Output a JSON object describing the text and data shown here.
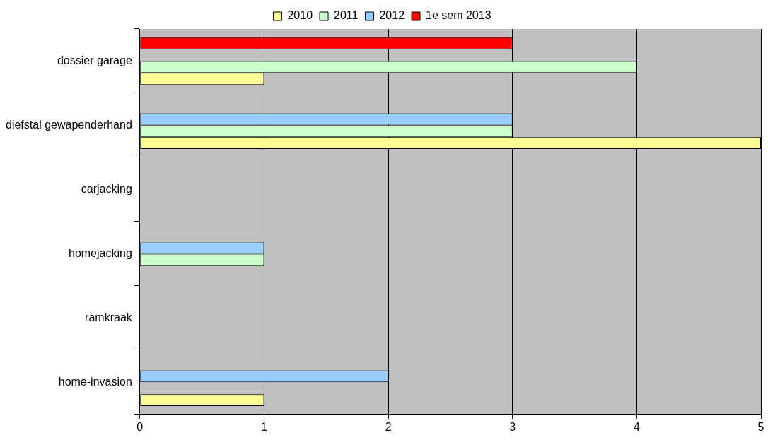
{
  "chart_data": {
    "type": "bar",
    "orientation": "horizontal",
    "categories": [
      "dossier garage",
      "diefstal gewapenderhand",
      "carjacking",
      "homejacking",
      "ramkraak",
      "home-invasion"
    ],
    "series": [
      {
        "name": "2010",
        "color": "#ffff99",
        "values": [
          1,
          5,
          0,
          0,
          0,
          1
        ]
      },
      {
        "name": "2011",
        "color": "#ccffcc",
        "values": [
          4,
          3,
          0,
          1,
          0,
          0
        ]
      },
      {
        "name": "2012",
        "color": "#99ccff",
        "values": [
          0,
          3,
          0,
          1,
          0,
          2
        ]
      },
      {
        "name": "1e sem 2013",
        "color": "#ff0000",
        "values": [
          3,
          0,
          0,
          0,
          0,
          0
        ]
      }
    ],
    "xlim": [
      0,
      5
    ],
    "xticks": [
      0,
      1,
      2,
      3,
      4,
      5
    ],
    "grid": "x",
    "legend": "top"
  }
}
